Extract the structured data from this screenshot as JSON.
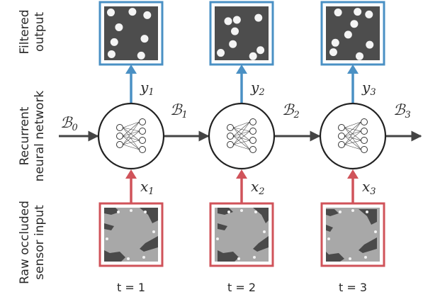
{
  "row_labels": {
    "filtered": [
      "Filtered",
      "output"
    ],
    "recurrent": [
      "Recurrent",
      "neural network"
    ],
    "raw": [
      "Raw occluded",
      "sensor input"
    ]
  },
  "belief_letter": "ℬ",
  "belief_subscripts": [
    "0",
    "1",
    "2",
    "3"
  ],
  "steps": [
    {
      "time_label": "t = 1",
      "output_var": "y",
      "output_sub": "1",
      "input_var": "x",
      "input_sub": "1"
    },
    {
      "time_label": "t = 2",
      "output_var": "y",
      "output_sub": "2",
      "input_var": "x",
      "input_sub": "2"
    },
    {
      "time_label": "t = 3",
      "output_var": "y",
      "output_sub": "3",
      "input_var": "x",
      "input_sub": "3"
    }
  ],
  "colors": {
    "output_frame": "#4a90c4",
    "input_frame": "#d0535a",
    "arrow": "#444444",
    "output_bg": "#4d4d4d",
    "input_bg": "#a8a8a8"
  },
  "icons": {
    "cell": "neural-network-icon",
    "output": "filtered-output-image",
    "input": "occluded-sensor-image"
  }
}
